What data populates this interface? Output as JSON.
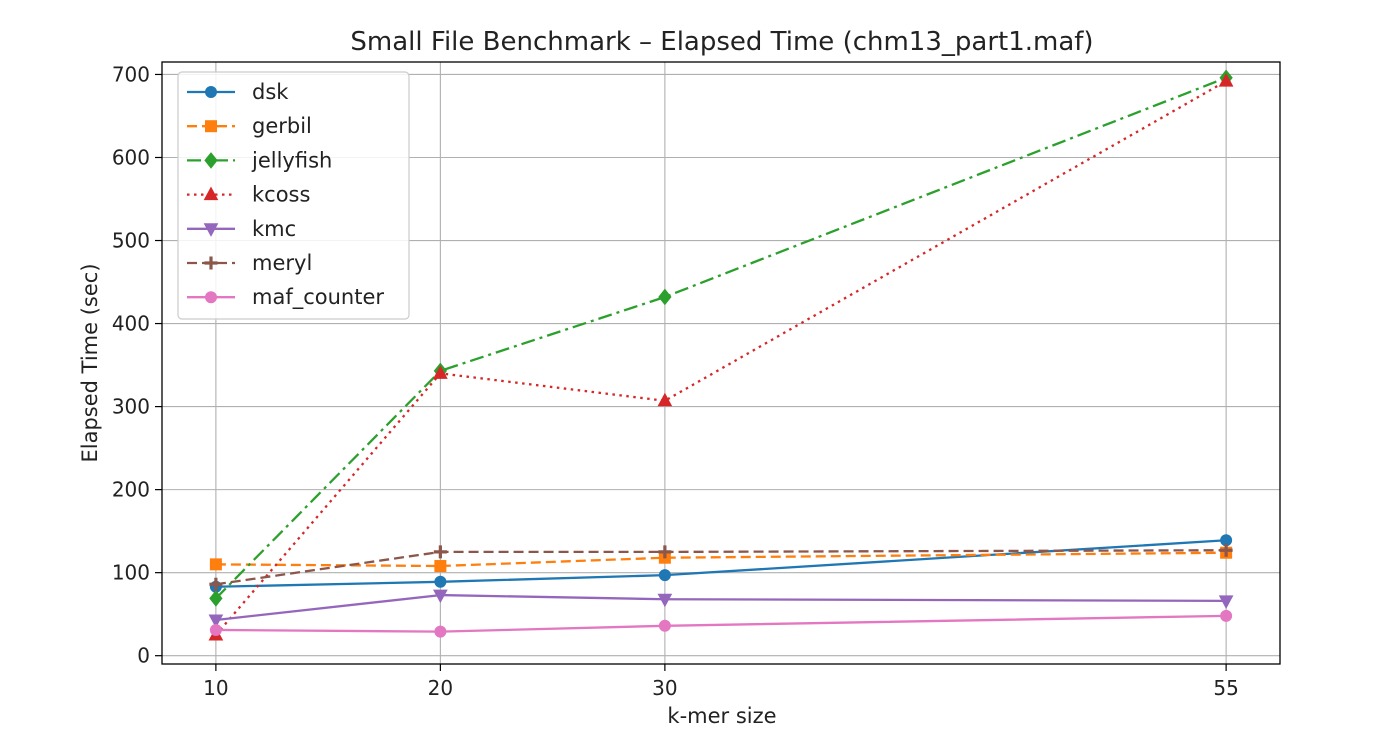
{
  "chart_data": {
    "type": "line",
    "title": "Small File Benchmark – Elapsed Time (chm13_part1.maf)",
    "xlabel": "k-mer size",
    "ylabel": "Elapsed Time (sec)",
    "x": [
      10,
      20,
      30,
      55
    ],
    "x_tick_labels": [
      "10",
      "20",
      "30",
      "55"
    ],
    "xlim": [
      7.6,
      57.4
    ],
    "ylim": [
      -10,
      715
    ],
    "y_ticks": [
      0,
      100,
      200,
      300,
      400,
      500,
      600,
      700
    ],
    "y_tick_labels": [
      "0",
      "100",
      "200",
      "300",
      "400",
      "500",
      "600",
      "700"
    ],
    "grid": true,
    "legend_position": "upper-left",
    "series": [
      {
        "name": "dsk",
        "values": [
          83,
          89,
          97,
          139
        ],
        "color": "#1f77b4",
        "dash": "solid",
        "marker": "circle"
      },
      {
        "name": "gerbil",
        "values": [
          110,
          108,
          118,
          124
        ],
        "color": "#ff7f0e",
        "dash": "dashed",
        "marker": "square"
      },
      {
        "name": "jellyfish",
        "values": [
          69,
          343,
          432,
          696
        ],
        "color": "#2ca02c",
        "dash": "dashdot",
        "marker": "diamond"
      },
      {
        "name": "kcoss",
        "values": [
          25,
          340,
          307,
          692
        ],
        "color": "#d62728",
        "dash": "dotted",
        "marker": "triangle-up"
      },
      {
        "name": "kmc",
        "values": [
          43,
          73,
          68,
          66
        ],
        "color": "#9467bd",
        "dash": "solid",
        "marker": "triangle-down"
      },
      {
        "name": "meryl",
        "values": [
          86,
          125,
          125,
          127
        ],
        "color": "#8c564b",
        "dash": "dashed",
        "marker": "plus"
      },
      {
        "name": "maf_counter",
        "values": [
          31,
          29,
          36,
          48
        ],
        "color": "#e377c2",
        "dash": "solid",
        "marker": "circle"
      }
    ]
  }
}
